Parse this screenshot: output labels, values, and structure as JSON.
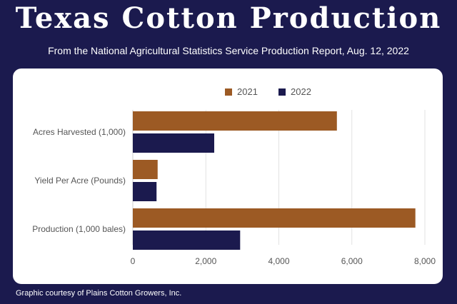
{
  "header": {
    "title": "Texas Cotton Production",
    "subtitle": "From the National Agricultural Statistics Service Production Report, Aug. 12, 2022"
  },
  "footer": {
    "credit": "Graphic courtesy of Plains Cotton Growers, Inc."
  },
  "colors": {
    "background": "#1b1a4e",
    "series_2021": "#9c5a24",
    "series_2022": "#1b1a4e",
    "grid": "#e2e2e2",
    "text": "#555555"
  },
  "chart_data": {
    "type": "bar",
    "orientation": "horizontal",
    "categories": [
      "Acres Harvested (1,000)",
      "Yield Per Acre (Pounds)",
      "Production (1,000 bales)"
    ],
    "series": [
      {
        "name": "2021",
        "values": [
          5590,
          680,
          7740
        ]
      },
      {
        "name": "2022",
        "values": [
          2230,
          650,
          2940
        ]
      }
    ],
    "xlim": [
      0,
      8000
    ],
    "x_ticks": [
      0,
      2000,
      4000,
      6000,
      8000
    ],
    "x_tick_labels": [
      "0",
      "2,000",
      "4,000",
      "6,000",
      "8,000"
    ],
    "grid": true,
    "legend_position": "top"
  }
}
